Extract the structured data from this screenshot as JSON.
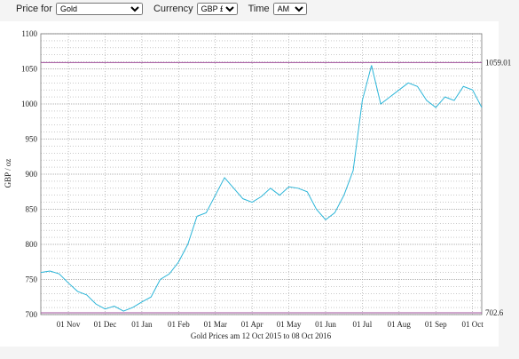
{
  "controls": {
    "price_label": "Price for",
    "price_value": "Gold",
    "currency_label": "Currency",
    "currency_value": "GBP £",
    "time_label": "Time",
    "time_value": "AM"
  },
  "chart_data": {
    "type": "line",
    "title": "Gold Prices am 12 Oct 2015 to 08 Oct 2016",
    "y_label": "GBP / oz",
    "categories": [
      null,
      null,
      null,
      "01 Nov",
      null,
      null,
      null,
      "01 Dec",
      null,
      null,
      null,
      "01 Jan",
      null,
      null,
      null,
      "01 Feb",
      null,
      null,
      null,
      "01 Mar",
      null,
      null,
      null,
      "01 Apr",
      null,
      null,
      null,
      "01 May",
      null,
      null,
      null,
      "01 Jun",
      null,
      null,
      null,
      "01 Jul",
      null,
      null,
      null,
      "01 Aug",
      null,
      null,
      null,
      "01 Sep",
      null,
      null,
      null,
      "01 Oct",
      null
    ],
    "series": [
      {
        "name": "Gold",
        "color": "#2bb5d8",
        "values": [
          760,
          762,
          758,
          745,
          733,
          728,
          715,
          708,
          712,
          705,
          710,
          718,
          725,
          750,
          758,
          775,
          800,
          840,
          845,
          870,
          895,
          880,
          865,
          860,
          868,
          880,
          870,
          882,
          880,
          875,
          850,
          835,
          845,
          870,
          905,
          1005,
          1055,
          1000,
          1010,
          1020,
          1030,
          1025,
          1005,
          995,
          1010,
          1005,
          1025,
          1020,
          995
        ]
      }
    ],
    "max": 1059.01,
    "min": 702.6,
    "ref_color": "#a0509c",
    "ylim": [
      700,
      1100
    ],
    "yticks": [
      700,
      750,
      800,
      850,
      900,
      950,
      1000,
      1050,
      1100
    ],
    "grid": true
  }
}
